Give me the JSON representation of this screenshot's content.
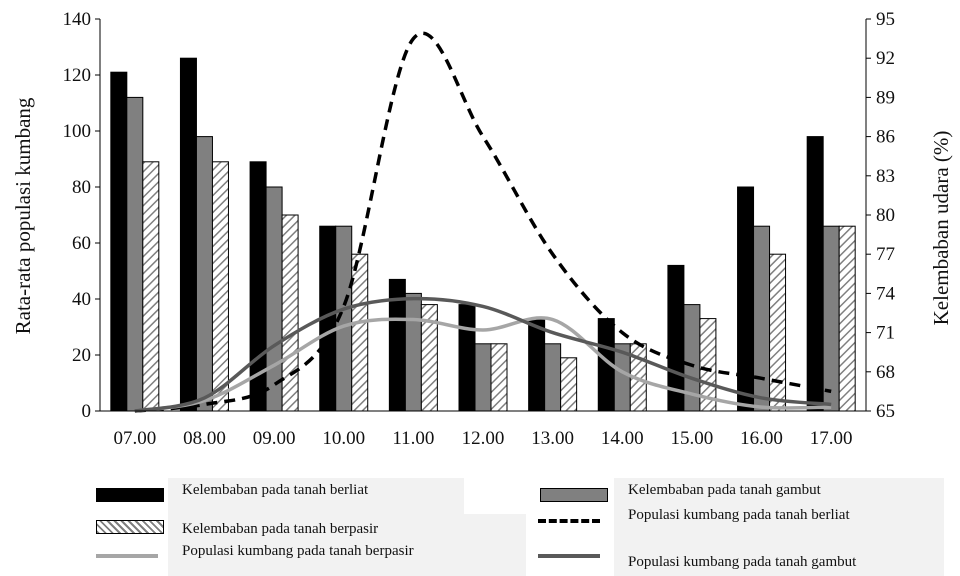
{
  "chart_data": {
    "type": "bar",
    "categories": [
      "07.00",
      "08.00",
      "09.00",
      "10.00",
      "11.00",
      "12.00",
      "13.00",
      "14.00",
      "15.00",
      "16.00",
      "17.00"
    ],
    "ylabel": "Rata-rata populasi kumbang",
    "y2label": "Kelembaban udara (%)",
    "ylim": [
      0,
      140
    ],
    "y_ticks": [
      "0",
      "20",
      "40",
      "60",
      "80",
      "100",
      "120",
      "140"
    ],
    "y2lim": [
      65,
      95
    ],
    "y2_ticks": [
      "65",
      "68",
      "71",
      "74",
      "77",
      "80",
      "83",
      "86",
      "89",
      "92",
      "95"
    ],
    "grid": false,
    "legend_position": "bottom",
    "bar_series": [
      {
        "name": "Kelembaban pada tanah berliat",
        "axis": "left",
        "style": "solid-black",
        "values": [
          121,
          126,
          89,
          66,
          47,
          38,
          33,
          33,
          52,
          80,
          98
        ]
      },
      {
        "name": "Kelembaban pada tanah gambut",
        "axis": "left",
        "style": "solid-gray",
        "values": [
          112,
          98,
          80,
          66,
          42,
          24,
          24,
          24,
          38,
          66,
          66
        ]
      },
      {
        "name": "Kelembaban pada tanah berpasir",
        "axis": "left",
        "style": "hatched",
        "values": [
          89,
          89,
          70,
          56,
          38,
          24,
          19,
          24,
          33,
          56,
          66
        ]
      }
    ],
    "line_series": [
      {
        "name": "Populasi kumbang pada tanah berliat",
        "axis": "right",
        "style": "dashed-black",
        "values": [
          65,
          65.5,
          67,
          73,
          93.5,
          86,
          77,
          71,
          68.5,
          67.5,
          66.5
        ]
      },
      {
        "name": "Populasi kumbang pada tanah berpasir",
        "axis": "right",
        "style": "solid-lightgray",
        "values": [
          65,
          65.8,
          68.5,
          71.5,
          72,
          71.2,
          72,
          68,
          66.3,
          65.3,
          65.3
        ]
      },
      {
        "name": "Populasi kumbang pada tanah gambut",
        "axis": "right",
        "style": "solid-darkgray",
        "values": [
          65,
          66,
          70,
          72.8,
          73.6,
          73,
          71,
          69.5,
          67.5,
          66,
          65.5
        ]
      }
    ]
  },
  "legend": [
    {
      "key": "berliat_bar",
      "label": "Kelembaban pada tanah berliat",
      "swatch": "bar-black"
    },
    {
      "key": "gambut_bar",
      "label": "Kelembaban pada tanah gambut",
      "swatch": "bar-gray"
    },
    {
      "key": "berpasir_bar",
      "label": "Kelembaban pada tanah berpasir",
      "swatch": "bar-hatched"
    },
    {
      "key": "berliat_line",
      "label": "Populasi kumbang pada tanah berliat",
      "swatch": "line-dashed"
    },
    {
      "key": "berpasir_line",
      "label": "Populasi kumbang pada tanah berpasir",
      "swatch": "line-lightgray"
    },
    {
      "key": "gambut_line",
      "label": "Populasi kumbang pada tanah gambut",
      "swatch": "line-darkgray"
    }
  ],
  "colors": {
    "bar_black": "#000000",
    "bar_gray": "#808080",
    "hatch": "#7f7f7f",
    "line_dashed": "#000000",
    "line_lightgray": "#a6a6a6",
    "line_darkgray": "#595959",
    "legend_bg": "#f2f2f2"
  }
}
